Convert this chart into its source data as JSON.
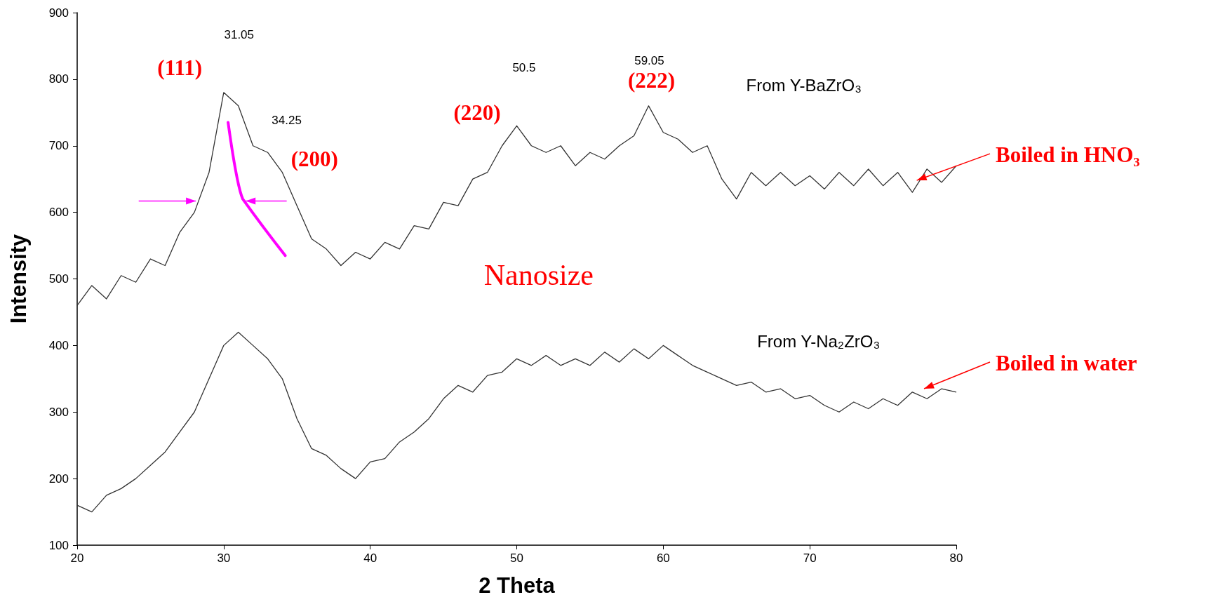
{
  "chart_data": {
    "type": "line",
    "xlabel": "2 Theta",
    "ylabel": "Intensity",
    "xlim": [
      20,
      80
    ],
    "xticks": [
      20,
      30,
      40,
      50,
      60,
      70,
      80
    ],
    "ylim": [
      100,
      900
    ],
    "yticks": [
      100,
      200,
      300,
      400,
      500,
      600,
      700,
      800,
      900
    ],
    "grid": false,
    "x": [
      20,
      21,
      22,
      23,
      24,
      25,
      26,
      27,
      28,
      29,
      30,
      31,
      32,
      33,
      34,
      35,
      36,
      37,
      38,
      39,
      40,
      41,
      42,
      43,
      44,
      45,
      46,
      47,
      48,
      49,
      50,
      51,
      52,
      53,
      54,
      55,
      56,
      57,
      58,
      59,
      60,
      61,
      62,
      63,
      64,
      65,
      66,
      67,
      68,
      69,
      70,
      71,
      72,
      73,
      74,
      75,
      76,
      77,
      78,
      79,
      80
    ],
    "series": [
      {
        "color": "#333333",
        "values": [
          460,
          490,
          470,
          505,
          495,
          530,
          520,
          570,
          600,
          660,
          780,
          760,
          700,
          690,
          660,
          610,
          560,
          545,
          520,
          540,
          530,
          555,
          545,
          580,
          575,
          615,
          610,
          650,
          660,
          700,
          730,
          700,
          690,
          700,
          670,
          690,
          680,
          700,
          715,
          760,
          720,
          710,
          690,
          700,
          650,
          620,
          660,
          640,
          660,
          640,
          655,
          635,
          660,
          640,
          665,
          640,
          660,
          630,
          665,
          645,
          670
        ]
      },
      {
        "color": "#333333",
        "values": [
          160,
          150,
          175,
          185,
          200,
          220,
          240,
          270,
          300,
          350,
          400,
          420,
          400,
          380,
          350,
          290,
          245,
          235,
          215,
          200,
          225,
          230,
          255,
          270,
          290,
          320,
          340,
          330,
          355,
          360,
          380,
          370,
          385,
          370,
          380,
          370,
          390,
          375,
          395,
          380,
          400,
          385,
          370,
          360,
          350,
          340,
          345,
          330,
          335,
          320,
          325,
          310,
          300,
          315,
          305,
          320,
          310,
          330,
          320,
          335,
          330
        ]
      }
    ],
    "annotations": [
      "31.05",
      "34.25",
      "50.5",
      "59.05",
      "(111)",
      "(200)",
      "(220)",
      "(222)",
      "From Y-BaZrO₃",
      "Nanosize",
      "From Y-Na₂ZrO₃",
      {
        "text": "Boiled in HNO₃",
        "x": 77.3,
        "y": 648
      },
      "Boiled in water"
    ]
  }
}
